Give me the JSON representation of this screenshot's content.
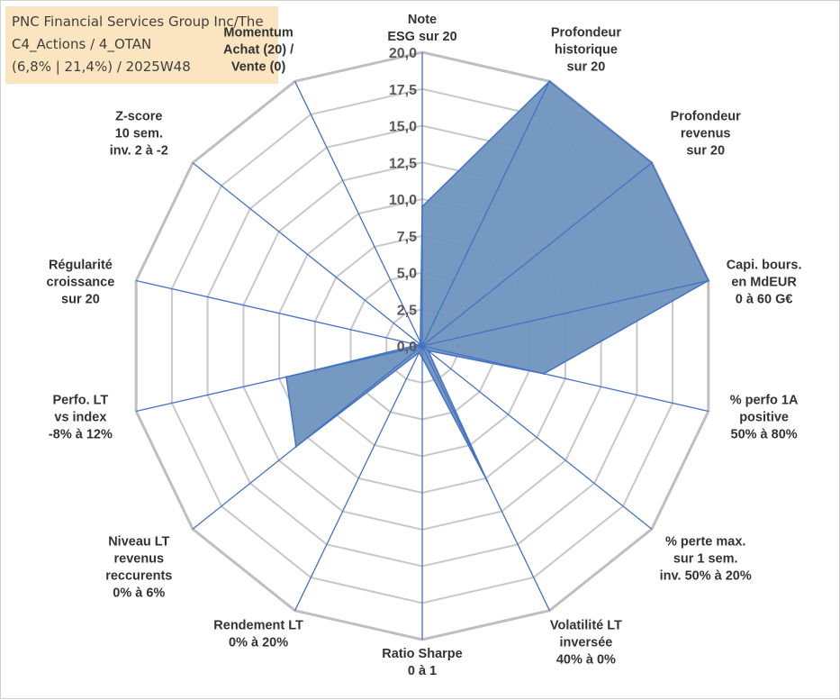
{
  "info": {
    "line1": "PNC Financial Services Group Inc/The",
    "line2": "C4_Actions / 4_OTAN",
    "line3": "(6,8% | 21,4%) / 2025W48"
  },
  "chart_data": {
    "type": "radar",
    "rmax": 20,
    "ticks": [
      "0,0",
      "2,5",
      "5,0",
      "7,5",
      "10,0",
      "12,5",
      "15,0",
      "17,5",
      "20,0"
    ],
    "axes": [
      {
        "label": [
          "Note",
          "ESG sur 20"
        ],
        "value": 9.5
      },
      {
        "label": [
          "Profondeur",
          "historique",
          "sur 20"
        ],
        "value": 20
      },
      {
        "label": [
          "Profondeur",
          "revenus",
          "sur 20"
        ],
        "value": 20
      },
      {
        "label": [
          "Capi. bours.",
          "en MdEUR",
          "0 à 60 G€"
        ],
        "value": 20
      },
      {
        "label": [
          "% perfo 1A",
          "positive",
          "50% à 80%"
        ],
        "value": 8.5
      },
      {
        "label": [
          "% perte max.",
          "sur 1 sem.",
          "inv. 50% à 20%"
        ],
        "value": 0.5
      },
      {
        "label": [
          "Volatilité LT",
          "inversée",
          "40% à 0%"
        ],
        "value": 10.2
      },
      {
        "label": [
          "Ratio Sharpe",
          "0 à 1"
        ],
        "value": 0.8
      },
      {
        "label": [
          "Rendement LT",
          "0% à 20%"
        ],
        "value": 0.5
      },
      {
        "label": [
          "Niveau LT",
          "revenus",
          "reccurents",
          "0% à 6%"
        ],
        "value": 11.0
      },
      {
        "label": [
          "Perfo. LT",
          "vs index",
          "-8% à 12%"
        ],
        "value": 9.5
      },
      {
        "label": [
          "Régularité",
          "croissance",
          "sur 20"
        ],
        "value": 0.3
      },
      {
        "label": [
          "Z-score",
          "10 sem.",
          "inv. 2 à -2"
        ],
        "value": 0.2
      },
      {
        "label": [
          "Momentum",
          "Achat (20) /",
          "Vente (0)"
        ],
        "value": 0.3
      }
    ],
    "series": [
      {
        "color": "#6f93bf",
        "stroke": "#4472c4"
      }
    ],
    "grid_color": "#c8c8c8",
    "outer_grid_color": "#bfbfbf",
    "spoke_color": "#4472c4"
  }
}
